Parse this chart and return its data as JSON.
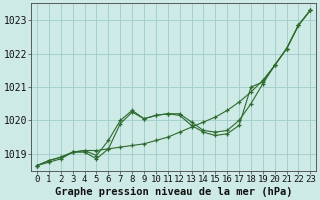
{
  "xlabel": "Graphe pression niveau de la mer (hPa)",
  "ylabel": "",
  "bg_color": "#ceeae6",
  "grid_color": "#9eccc8",
  "line_color": "#2d6a2d",
  "hours": [
    0,
    1,
    2,
    3,
    4,
    5,
    6,
    7,
    8,
    9,
    10,
    11,
    12,
    13,
    14,
    15,
    16,
    17,
    18,
    19,
    20,
    21,
    22,
    23
  ],
  "line1": [
    1018.65,
    1018.8,
    1018.9,
    1019.05,
    1019.1,
    1019.1,
    1019.15,
    1019.2,
    1019.25,
    1019.3,
    1019.4,
    1019.5,
    1019.65,
    1019.8,
    1019.95,
    1020.1,
    1020.3,
    1020.55,
    1020.85,
    1021.2,
    1021.65,
    1022.15,
    1022.85,
    1023.3
  ],
  "line2": [
    1018.65,
    1018.8,
    1018.9,
    1019.05,
    1019.1,
    1018.95,
    1019.4,
    1020.0,
    1020.3,
    1020.05,
    1020.15,
    1020.2,
    1020.2,
    1019.95,
    1019.7,
    1019.65,
    1019.7,
    1020.0,
    1020.5,
    1021.1,
    1021.65,
    1022.15,
    1022.85,
    1023.3
  ],
  "line3": [
    1018.65,
    1018.75,
    1018.85,
    1019.05,
    1019.05,
    1018.85,
    1019.15,
    1019.9,
    1020.25,
    1020.05,
    1020.15,
    1020.2,
    1020.15,
    1019.85,
    1019.65,
    1019.55,
    1019.6,
    1019.85,
    1021.0,
    1021.15,
    1021.65,
    1022.15,
    1022.85,
    1023.3
  ],
  "ylim": [
    1018.5,
    1023.5
  ],
  "yticks": [
    1019,
    1020,
    1021,
    1022,
    1023
  ],
  "xticks": [
    0,
    1,
    2,
    3,
    4,
    5,
    6,
    7,
    8,
    9,
    10,
    11,
    12,
    13,
    14,
    15,
    16,
    17,
    18,
    19,
    20,
    21,
    22,
    23
  ],
  "xlabel_fontsize": 7.5,
  "tick_fontsize": 6.5
}
